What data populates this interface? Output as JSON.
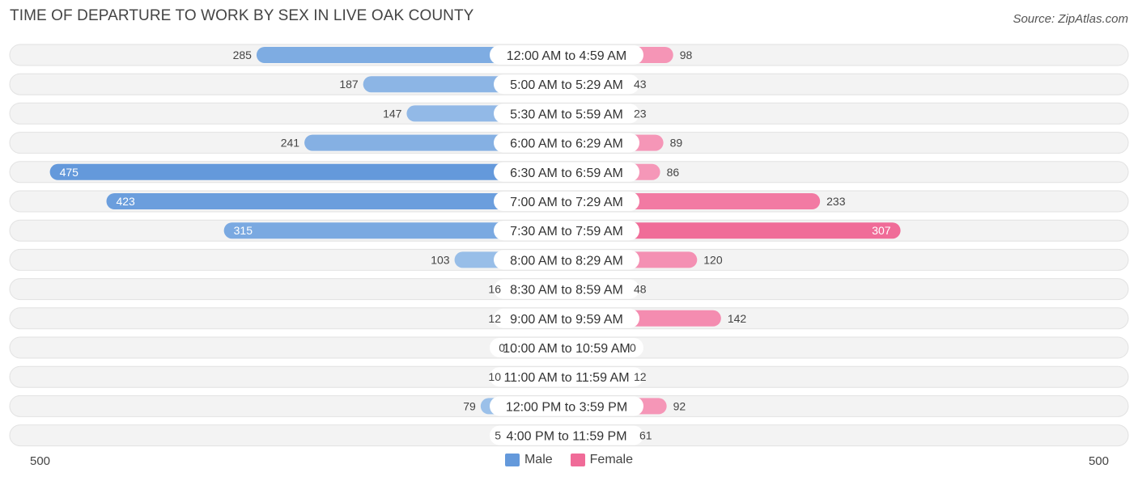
{
  "title": "TIME OF DEPARTURE TO WORK BY SEX IN LIVE OAK COUNTY",
  "source": "Source: ZipAtlas.com",
  "legend": {
    "male": "Male",
    "female": "Female"
  },
  "colors": {
    "male_light": "#a6c8ec",
    "male_strong": "#6499db",
    "female_light": "#f7a8c4",
    "female_strong": "#f06b98",
    "row_bg": "#f2f2f2"
  },
  "chart_data": {
    "type": "bar",
    "orientation": "horizontal-diverging",
    "title": "TIME OF DEPARTURE TO WORK BY SEX IN LIVE OAK COUNTY",
    "axis_max": 500,
    "axis_labels": {
      "left": "500",
      "right": "500"
    },
    "categories": [
      "12:00 AM to 4:59 AM",
      "5:00 AM to 5:29 AM",
      "5:30 AM to 5:59 AM",
      "6:00 AM to 6:29 AM",
      "6:30 AM to 6:59 AM",
      "7:00 AM to 7:29 AM",
      "7:30 AM to 7:59 AM",
      "8:00 AM to 8:29 AM",
      "8:30 AM to 8:59 AM",
      "9:00 AM to 9:59 AM",
      "10:00 AM to 10:59 AM",
      "11:00 AM to 11:59 AM",
      "12:00 PM to 3:59 PM",
      "4:00 PM to 11:59 PM"
    ],
    "series": [
      {
        "name": "Male",
        "values": [
          285,
          187,
          147,
          241,
          475,
          423,
          315,
          103,
          16,
          12,
          0,
          10,
          79,
          5
        ]
      },
      {
        "name": "Female",
        "values": [
          98,
          43,
          23,
          89,
          86,
          233,
          307,
          120,
          48,
          142,
          0,
          12,
          92,
          61
        ]
      }
    ]
  }
}
